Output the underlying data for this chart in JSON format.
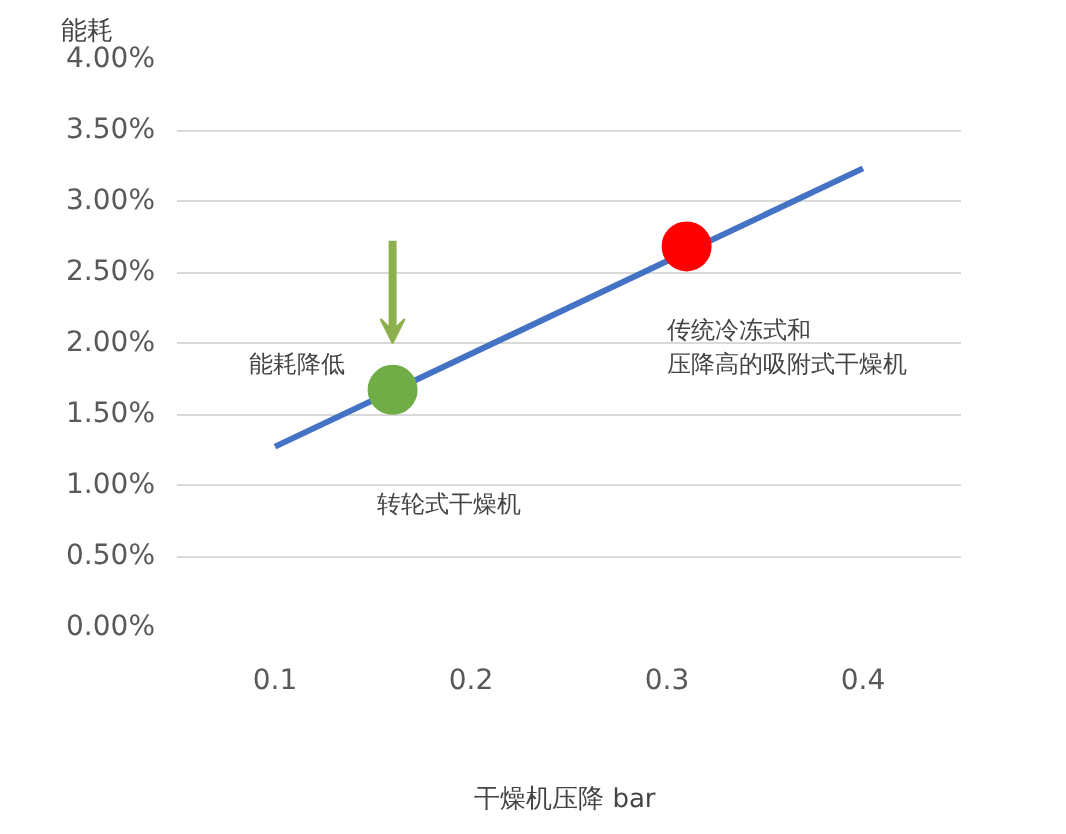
{
  "chart_data": {
    "type": "line",
    "xlabel": "干燥机压降  bar",
    "ylabel": "能耗",
    "xlim": [
      0.05,
      0.45
    ],
    "xticks": [
      0.1,
      0.2,
      0.3,
      0.4
    ],
    "ylim": [
      0,
      4
    ],
    "yticks": [
      {
        "value": 0,
        "label": "0.00%"
      },
      {
        "value": 0.5,
        "label": "0.50%"
      },
      {
        "value": 1,
        "label": "1.00%"
      },
      {
        "value": 1.5,
        "label": "1.50%"
      },
      {
        "value": 2,
        "label": "2.00%"
      },
      {
        "value": 2.5,
        "label": "2.50%"
      },
      {
        "value": 3,
        "label": "3.00%"
      },
      {
        "value": 3.5,
        "label": "3.50%"
      },
      {
        "value": 4,
        "label": "4.00%"
      }
    ],
    "grid": "y",
    "series": [
      {
        "color": "#4472c4",
        "x": [
          0.1,
          0.4
        ],
        "values": [
          1.27,
          3.23
        ]
      },
      {
        "type": "scatter",
        "colors": [
          "#70ad47",
          "#ff0000"
        ],
        "x": [
          0.16,
          0.31
        ],
        "values": [
          1.67,
          2.68
        ],
        "marker": "circle"
      }
    ],
    "annotations": [
      "能耗降低",
      "转轮式干燥机",
      "传统冷冻式和压降高的吸附式干燥机"
    ]
  }
}
